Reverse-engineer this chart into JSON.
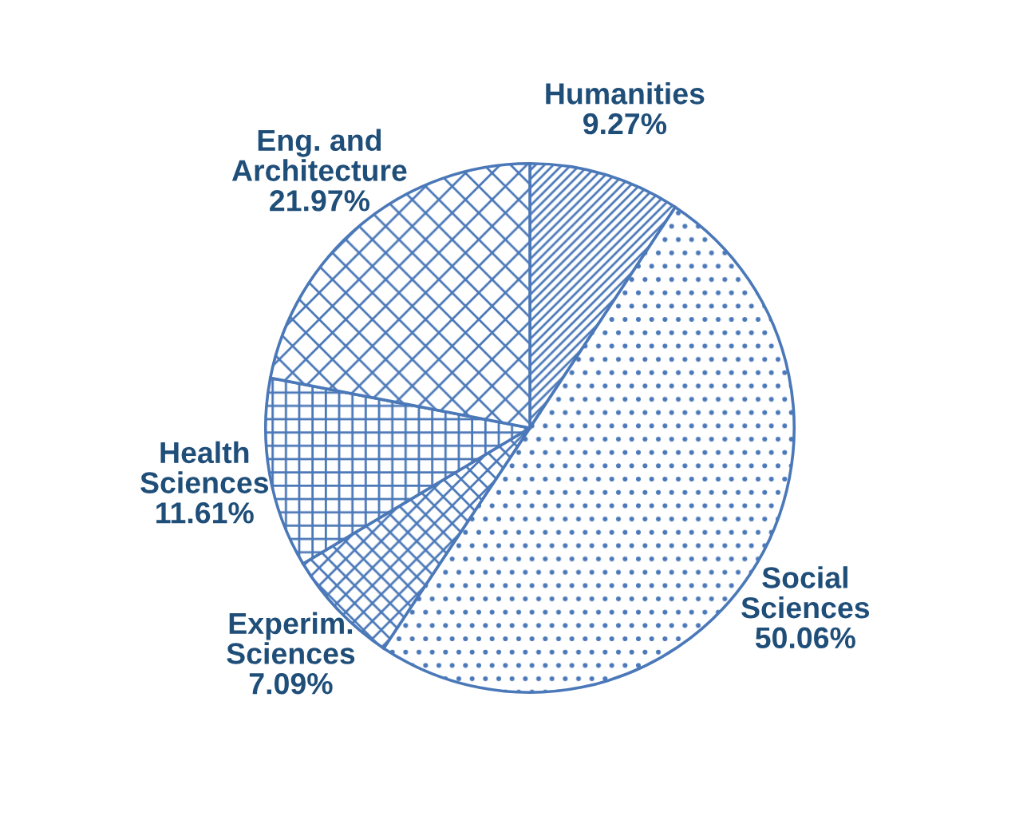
{
  "chart_data": {
    "type": "pie",
    "categories": [
      "Humanities",
      "Social\nSciences",
      "Experim.\nSciences",
      "Health\nSciences",
      "Eng. and\nArchitecture"
    ],
    "values": [
      9.27,
      50.06,
      7.09,
      11.61,
      21.97
    ],
    "colors": [
      "#4a78b8",
      "#4a78b8",
      "#4a78b8",
      "#4a78b8",
      "#4a78b8"
    ],
    "value_labels": [
      "9.27%",
      "50.06%",
      "7.09%",
      "11.61%",
      "21.97%"
    ]
  }
}
